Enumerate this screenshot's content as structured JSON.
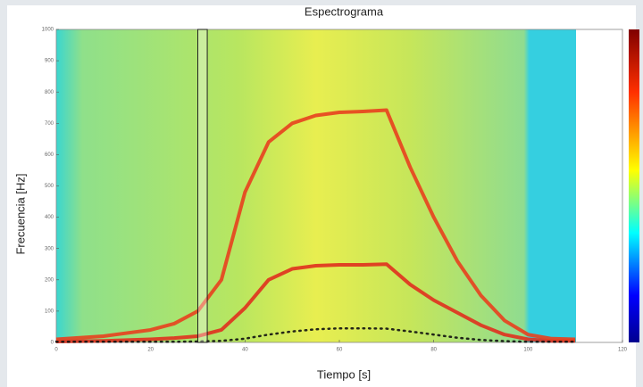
{
  "chart_data": {
    "type": "spectrogram",
    "title": "Espectrograma",
    "x_label": "Tiempo [s]",
    "y_label": "Frecuencia [Hz]",
    "xlim": [
      0,
      120
    ],
    "ylim": [
      0,
      1000
    ],
    "xticks": [
      0,
      20,
      40,
      60,
      80,
      100,
      120
    ],
    "yticks": [
      0,
      100,
      200,
      300,
      400,
      500,
      600,
      700,
      800,
      900,
      1000
    ],
    "highlight_x": [
      30,
      32
    ],
    "x": [
      0,
      10,
      20,
      25,
      30,
      35,
      40,
      45,
      50,
      55,
      60,
      65,
      70,
      75,
      80,
      85,
      90,
      95,
      100,
      105,
      110
    ],
    "series": [
      {
        "color": "#e0301e",
        "values": [
          3,
          5,
          10,
          14,
          20,
          40,
          110,
          200,
          235,
          245,
          248,
          248,
          250,
          185,
          135,
          95,
          55,
          25,
          10,
          5,
          5
        ]
      },
      {
        "color": "#e8401e",
        "values": [
          10,
          20,
          40,
          60,
          100,
          200,
          480,
          640,
          700,
          725,
          735,
          738,
          742,
          560,
          400,
          260,
          150,
          70,
          25,
          12,
          10
        ]
      },
      {
        "color": "#111111",
        "style": "dotted",
        "values": [
          2,
          2,
          2,
          2,
          3,
          5,
          12,
          25,
          35,
          42,
          45,
          45,
          44,
          35,
          25,
          15,
          8,
          4,
          2,
          2,
          2
        ]
      }
    ]
  }
}
